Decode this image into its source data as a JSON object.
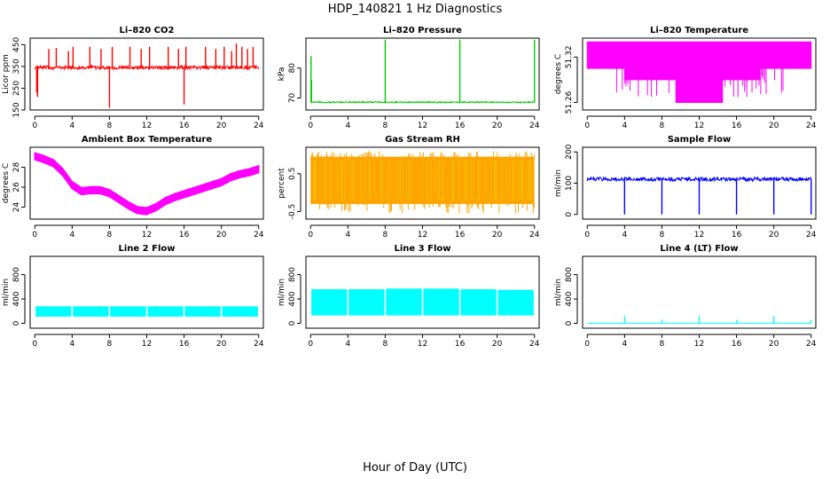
{
  "figure": {
    "title": "HDP_140821  1 Hz Diagnostics",
    "xlabel": "Hour of Day (UTC)"
  },
  "chart_data": [
    {
      "type": "line",
      "title": "Li–820 CO2",
      "ylabel": "Licor ppm",
      "color": "#ff0000",
      "xlim": [
        -0.5,
        24.5
      ],
      "ylim": [
        150,
        480
      ],
      "xticks": [
        "0",
        "4",
        "8",
        "12",
        "16",
        "20",
        "24"
      ],
      "yticks": [
        "150",
        "250",
        "350",
        "450"
      ],
      "baseline": 345,
      "band": 8,
      "spikes": [
        [
          0.2,
          230
        ],
        [
          0.3,
          210
        ],
        [
          1.5,
          430
        ],
        [
          2.3,
          435
        ],
        [
          3.6,
          420
        ],
        [
          4.1,
          440
        ],
        [
          5.9,
          440
        ],
        [
          7.1,
          430
        ],
        [
          8.0,
          160
        ],
        [
          8.3,
          440
        ],
        [
          10.2,
          440
        ],
        [
          11.4,
          430
        ],
        [
          12.3,
          440
        ],
        [
          14.3,
          440
        ],
        [
          15.4,
          430
        ],
        [
          16.0,
          175
        ],
        [
          16.2,
          440
        ],
        [
          18.3,
          440
        ],
        [
          19.4,
          430
        ],
        [
          20.3,
          440
        ],
        [
          21.1,
          420
        ],
        [
          21.6,
          455
        ],
        [
          22.2,
          440
        ],
        [
          22.8,
          430
        ],
        [
          23.4,
          440
        ]
      ]
    },
    {
      "type": "line",
      "title": "Li–820 Pressure",
      "ylabel": "kPa",
      "color": "#00cc00",
      "xlim": [
        -0.5,
        24.5
      ],
      "ylim": [
        66,
        90
      ],
      "xticks": [
        "0",
        "4",
        "8",
        "12",
        "16",
        "20",
        "24"
      ],
      "yticks": [
        "70",
        "80"
      ],
      "baseline": 68.6,
      "band": 0.2,
      "spikes": [
        [
          0.05,
          84
        ],
        [
          0.1,
          76
        ],
        [
          8.0,
          89.5
        ],
        [
          16.0,
          89.5
        ],
        [
          24.0,
          89.5
        ]
      ]
    },
    {
      "type": "area",
      "title": "Li–820 Temperature",
      "ylabel": "degrees C",
      "color": "#ff00ff",
      "xlim": [
        -0.5,
        24.5
      ],
      "ylim": [
        51.25,
        51.345
      ],
      "xticks": [
        "0",
        "4",
        "8",
        "12",
        "16",
        "20",
        "24"
      ],
      "yticks": [
        "51.26",
        "51.32"
      ],
      "envelope_x": [
        0,
        4,
        4,
        9.5,
        9.5,
        14.5,
        14.5,
        18.5,
        18.5,
        24
      ],
      "envelope_low": [
        51.305,
        51.305,
        51.29,
        51.29,
        51.26,
        51.26,
        51.29,
        51.29,
        51.305,
        51.305
      ],
      "envelope_high": [
        51.34,
        51.34,
        51.34,
        51.34,
        51.34,
        51.34,
        51.34,
        51.34,
        51.34,
        51.34
      ]
    },
    {
      "type": "area",
      "title": "Ambient Box Temperature",
      "ylabel": "degrees C",
      "color": "#ff00ff",
      "xlim": [
        -0.5,
        24.5
      ],
      "ylim": [
        22.8,
        30.0
      ],
      "xticks": [
        "0",
        "4",
        "8",
        "12",
        "16",
        "20",
        "24"
      ],
      "yticks": [
        "24",
        "26",
        "28"
      ],
      "x": [
        0,
        1,
        2,
        3,
        4,
        5,
        6,
        7,
        8,
        9,
        10,
        11,
        12,
        13,
        14,
        15,
        16,
        17,
        18,
        19,
        20,
        21,
        22,
        23,
        24
      ],
      "values": [
        29.1,
        28.8,
        28.4,
        27.5,
        26.2,
        25.6,
        25.7,
        25.7,
        25.4,
        24.8,
        24.2,
        23.7,
        23.6,
        24.0,
        24.6,
        25.0,
        25.3,
        25.6,
        25.9,
        26.2,
        26.5,
        27.0,
        27.3,
        27.5,
        27.8
      ],
      "band": 0.35
    },
    {
      "type": "area",
      "title": "Gas Stream RH",
      "ylabel": "percent",
      "color": "#ffa500",
      "xlim": [
        -0.5,
        24.5
      ],
      "ylim": [
        -0.7,
        1.2
      ],
      "xticks": [
        "0",
        "4",
        "8",
        "12",
        "16",
        "20",
        "24"
      ],
      "yticks": [
        "-0.5",
        "0.5"
      ],
      "envelope_low": -0.3,
      "envelope_high": 0.95,
      "extremes": [
        -0.55,
        1.1
      ]
    },
    {
      "type": "line",
      "title": "Sample Flow",
      "ylabel": "ml/min",
      "color": "#0000ff",
      "xlim": [
        -0.5,
        24.5
      ],
      "ylim": [
        -15,
        215
      ],
      "xticks": [
        "0",
        "4",
        "8",
        "12",
        "16",
        "20",
        "24"
      ],
      "yticks": [
        "0",
        "100",
        "200"
      ],
      "baseline": 113,
      "band": 6,
      "dips": [
        [
          4.0,
          0
        ],
        [
          8.0,
          0
        ],
        [
          12.0,
          0
        ],
        [
          16.0,
          0
        ],
        [
          20.0,
          0
        ],
        [
          24.0,
          0
        ]
      ]
    },
    {
      "type": "area",
      "title": "Line 2 Flow",
      "ylabel": "ml/min",
      "color": "#00ffff",
      "xlim": [
        -0.5,
        24.5
      ],
      "ylim": [
        -80,
        1100
      ],
      "xticks": [
        "0",
        "4",
        "8",
        "12",
        "16",
        "20",
        "24"
      ],
      "yticks": [
        "0",
        "400",
        "800"
      ],
      "envelope_low": 110,
      "envelope_high": 280,
      "gaps": [
        4,
        8,
        12,
        16,
        20
      ]
    },
    {
      "type": "area",
      "title": "Line 3 Flow",
      "ylabel": "ml/min",
      "color": "#00ffff",
      "xlim": [
        -0.5,
        24.5
      ],
      "ylim": [
        -80,
        1100
      ],
      "xticks": [
        "0",
        "4",
        "8",
        "12",
        "16",
        "20",
        "24"
      ],
      "yticks": [
        "0",
        "400",
        "800"
      ],
      "envelope_low": 130,
      "envelope_high": [
        540,
        550,
        560,
        560,
        570,
        570,
        560,
        550,
        540
      ],
      "gaps": [
        4,
        8,
        12,
        16,
        20
      ]
    },
    {
      "type": "line",
      "title": "Line 4 (LT) Flow",
      "ylabel": "ml/min",
      "color": "#00ffff",
      "xlim": [
        -0.5,
        24.5
      ],
      "ylim": [
        -80,
        1100
      ],
      "xticks": [
        "0",
        "4",
        "8",
        "12",
        "16",
        "20",
        "24"
      ],
      "yticks": [
        "0",
        "400",
        "800"
      ],
      "baseline": 2,
      "spikes": [
        [
          4.0,
          120
        ],
        [
          8.0,
          60
        ],
        [
          12.0,
          120
        ],
        [
          16.0,
          60
        ],
        [
          20.0,
          120
        ],
        [
          24.0,
          60
        ]
      ]
    }
  ]
}
